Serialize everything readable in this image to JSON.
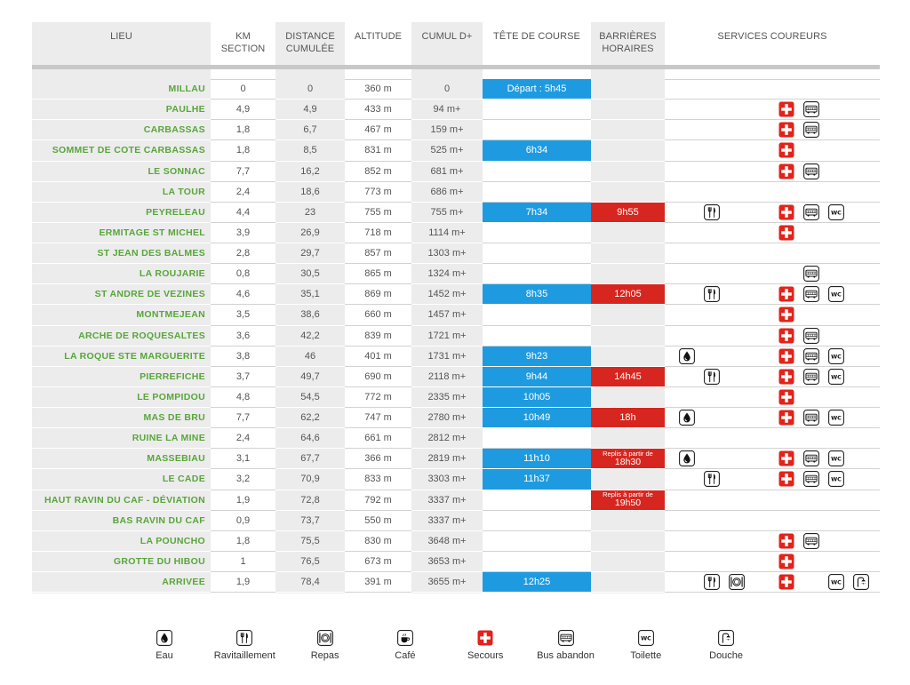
{
  "columns": [
    {
      "lines": [
        "LIEU"
      ]
    },
    {
      "lines": [
        "KM",
        "SECTION"
      ]
    },
    {
      "lines": [
        "DISTANCE",
        "CUMULÉE"
      ]
    },
    {
      "lines": [
        "ALTITUDE"
      ]
    },
    {
      "lines": [
        "CUMUL D+"
      ]
    },
    {
      "lines": [
        "TÊTE DE COURSE"
      ]
    },
    {
      "lines": [
        "BARRIÈRES",
        "HORAIRES"
      ]
    },
    {
      "lines": [
        "SERVICES COUREURS"
      ]
    }
  ],
  "rows": [
    {
      "lieu": "MILLAU",
      "km_section": "0",
      "distance_cumulee": "0",
      "altitude": "360 m",
      "cumul_d_plus": "0",
      "tete_de_course": "Départ : 5h45",
      "barriere_horaire": null,
      "barriere_note": null,
      "services": []
    },
    {
      "lieu": "PAULHE",
      "km_section": "4,9",
      "distance_cumulee": "4,9",
      "altitude": "433 m",
      "cumul_d_plus": "94 m+",
      "tete_de_course": null,
      "barriere_horaire": null,
      "barriere_note": null,
      "services": [
        "first-aid-cross-icon",
        "bus-icon"
      ]
    },
    {
      "lieu": "CARBASSAS",
      "km_section": "1,8",
      "distance_cumulee": "6,7",
      "altitude": "467 m",
      "cumul_d_plus": "159 m+",
      "tete_de_course": null,
      "barriere_horaire": null,
      "barriere_note": null,
      "services": [
        "first-aid-cross-icon",
        "bus-icon"
      ]
    },
    {
      "lieu": "SOMMET DE COTE CARBASSAS",
      "km_section": "1,8",
      "distance_cumulee": "8,5",
      "altitude": "831 m",
      "cumul_d_plus": "525 m+",
      "tete_de_course": "6h34",
      "barriere_horaire": null,
      "barriere_note": null,
      "services": [
        "first-aid-cross-icon"
      ]
    },
    {
      "lieu": "LE SONNAC",
      "km_section": "7,7",
      "distance_cumulee": "16,2",
      "altitude": "852 m",
      "cumul_d_plus": "681 m+",
      "tete_de_course": null,
      "barriere_horaire": null,
      "barriere_note": null,
      "services": [
        "first-aid-cross-icon",
        "bus-icon"
      ]
    },
    {
      "lieu": "LA TOUR",
      "km_section": "2,4",
      "distance_cumulee": "18,6",
      "altitude": "773 m",
      "cumul_d_plus": "686 m+",
      "tete_de_course": null,
      "barriere_horaire": null,
      "barriere_note": null,
      "services": []
    },
    {
      "lieu": "PEYRELEAU",
      "km_section": "4,4",
      "distance_cumulee": "23",
      "altitude": "755 m",
      "cumul_d_plus": "755 m+",
      "tete_de_course": "7h34",
      "barriere_horaire": "9h55",
      "barriere_note": null,
      "services": [
        "fork-knife-icon",
        "first-aid-cross-icon",
        "bus-icon",
        "wc-icon"
      ]
    },
    {
      "lieu": "ERMITAGE ST MICHEL",
      "km_section": "3,9",
      "distance_cumulee": "26,9",
      "altitude": "718 m",
      "cumul_d_plus": "1114 m+",
      "tete_de_course": null,
      "barriere_horaire": null,
      "barriere_note": null,
      "services": [
        "first-aid-cross-icon"
      ]
    },
    {
      "lieu": "ST JEAN DES BALMES",
      "km_section": "2,8",
      "distance_cumulee": "29,7",
      "altitude": "857 m",
      "cumul_d_plus": "1303 m+",
      "tete_de_course": null,
      "barriere_horaire": null,
      "barriere_note": null,
      "services": []
    },
    {
      "lieu": "LA ROUJARIE",
      "km_section": "0,8",
      "distance_cumulee": "30,5",
      "altitude": "865 m",
      "cumul_d_plus": "1324 m+",
      "tete_de_course": null,
      "barriere_horaire": null,
      "barriere_note": null,
      "services": [
        "bus-icon"
      ]
    },
    {
      "lieu": "ST ANDRE DE VEZINES",
      "km_section": "4,6",
      "distance_cumulee": "35,1",
      "altitude": "869 m",
      "cumul_d_plus": "1452 m+",
      "tete_de_course": "8h35",
      "barriere_horaire": "12h05",
      "barriere_note": null,
      "services": [
        "fork-knife-icon",
        "first-aid-cross-icon",
        "bus-icon",
        "wc-icon"
      ]
    },
    {
      "lieu": "MONTMEJEAN",
      "km_section": "3,5",
      "distance_cumulee": "38,6",
      "altitude": "660 m",
      "cumul_d_plus": "1457 m+",
      "tete_de_course": null,
      "barriere_horaire": null,
      "barriere_note": null,
      "services": [
        "first-aid-cross-icon"
      ]
    },
    {
      "lieu": "ARCHE DE ROQUESALTES",
      "km_section": "3,6",
      "distance_cumulee": "42,2",
      "altitude": "839 m",
      "cumul_d_plus": "1721 m+",
      "tete_de_course": null,
      "barriere_horaire": null,
      "barriere_note": null,
      "services": [
        "first-aid-cross-icon",
        "bus-icon"
      ]
    },
    {
      "lieu": "LA ROQUE STE MARGUERITE",
      "km_section": "3,8",
      "distance_cumulee": "46",
      "altitude": "401 m",
      "cumul_d_plus": "1731 m+",
      "tete_de_course": "9h23",
      "barriere_horaire": null,
      "barriere_note": null,
      "services": [
        "water-drop-icon",
        "first-aid-cross-icon",
        "bus-icon",
        "wc-icon"
      ]
    },
    {
      "lieu": "PIERREFICHE",
      "km_section": "3,7",
      "distance_cumulee": "49,7",
      "altitude": "690 m",
      "cumul_d_plus": "2118 m+",
      "tete_de_course": "9h44",
      "barriere_horaire": "14h45",
      "barriere_note": null,
      "services": [
        "fork-knife-icon",
        "first-aid-cross-icon",
        "bus-icon",
        "wc-icon"
      ]
    },
    {
      "lieu": "LE POMPIDOU",
      "km_section": "4,8",
      "distance_cumulee": "54,5",
      "altitude": "772 m",
      "cumul_d_plus": "2335 m+",
      "tete_de_course": "10h05",
      "barriere_horaire": null,
      "barriere_note": null,
      "services": [
        "first-aid-cross-icon"
      ]
    },
    {
      "lieu": "MAS DE BRU",
      "km_section": "7,7",
      "distance_cumulee": "62,2",
      "altitude": "747 m",
      "cumul_d_plus": "2780 m+",
      "tete_de_course": "10h49",
      "barriere_horaire": "18h",
      "barriere_note": null,
      "services": [
        "water-drop-icon",
        "first-aid-cross-icon",
        "bus-icon",
        "wc-icon"
      ]
    },
    {
      "lieu": "RUINE LA MINE",
      "km_section": "2,4",
      "distance_cumulee": "64,6",
      "altitude": "661 m",
      "cumul_d_plus": "2812 m+",
      "tete_de_course": null,
      "barriere_horaire": null,
      "barriere_note": null,
      "services": []
    },
    {
      "lieu": "MASSEBIAU",
      "km_section": "3,1",
      "distance_cumulee": "67,7",
      "altitude": "366 m",
      "cumul_d_plus": "2819 m+",
      "tete_de_course": "11h10",
      "barriere_horaire": "18h30",
      "barriere_note": "Replis à partir de",
      "services": [
        "water-drop-icon",
        "first-aid-cross-icon",
        "bus-icon",
        "wc-icon"
      ]
    },
    {
      "lieu": "LE CADE",
      "km_section": "3,2",
      "distance_cumulee": "70,9",
      "altitude": "833 m",
      "cumul_d_plus": "3303 m+",
      "tete_de_course": "11h37",
      "barriere_horaire": null,
      "barriere_note": null,
      "services": [
        "fork-knife-icon",
        "first-aid-cross-icon",
        "bus-icon",
        "wc-icon"
      ]
    },
    {
      "lieu": "HAUT RAVIN DU CAF - DÉVIATION",
      "km_section": "1,9",
      "distance_cumulee": "72,8",
      "altitude": "792 m",
      "cumul_d_plus": "3337 m+",
      "tete_de_course": null,
      "barriere_horaire": "19h50",
      "barriere_note": "Replis à partir de",
      "services": []
    },
    {
      "lieu": "BAS RAVIN DU CAF",
      "km_section": "0,9",
      "distance_cumulee": "73,7",
      "altitude": "550 m",
      "cumul_d_plus": "3337 m+",
      "tete_de_course": null,
      "barriere_horaire": null,
      "barriere_note": null,
      "services": []
    },
    {
      "lieu": "LA POUNCHO",
      "km_section": "1,8",
      "distance_cumulee": "75,5",
      "altitude": "830 m",
      "cumul_d_plus": "3648 m+",
      "tete_de_course": null,
      "barriere_horaire": null,
      "barriere_note": null,
      "services": [
        "first-aid-cross-icon",
        "bus-icon"
      ]
    },
    {
      "lieu": "GROTTE DU HIBOU",
      "km_section": "1",
      "distance_cumulee": "76,5",
      "altitude": "673 m",
      "cumul_d_plus": "3653 m+",
      "tete_de_course": null,
      "barriere_horaire": null,
      "barriere_note": null,
      "services": [
        "first-aid-cross-icon"
      ]
    },
    {
      "lieu": "ARRIVEE",
      "km_section": "1,9",
      "distance_cumulee": "78,4",
      "altitude": "391 m",
      "cumul_d_plus": "3655 m+",
      "tete_de_course": "12h25",
      "barriere_horaire": null,
      "barriere_note": null,
      "services": [
        "fork-knife-icon",
        "plate-icon",
        "first-aid-cross-icon",
        "wc-icon",
        "shower-icon"
      ]
    }
  ],
  "legend": [
    {
      "label": "Eau",
      "icon": "water-drop-icon"
    },
    {
      "label": "Ravitaillement",
      "icon": "fork-knife-icon"
    },
    {
      "label": "Repas",
      "icon": "plate-icon"
    },
    {
      "label": "Café",
      "icon": "coffee-cup-icon"
    },
    {
      "label": "Secours",
      "icon": "first-aid-cross-icon"
    },
    {
      "label": "Bus abandon",
      "icon": "bus-icon"
    },
    {
      "label": "Toilette",
      "icon": "wc-icon",
      "glyph": "WC"
    },
    {
      "label": "Douche",
      "icon": "shower-icon"
    }
  ],
  "colors": {
    "place_name": "#58a63a",
    "tete_de_course": "#1e9be0",
    "barriere_horaire": "#d7261f",
    "secours": "#e2231a",
    "column_shade": "#ececec",
    "header_rule": "#c8c8c8"
  }
}
